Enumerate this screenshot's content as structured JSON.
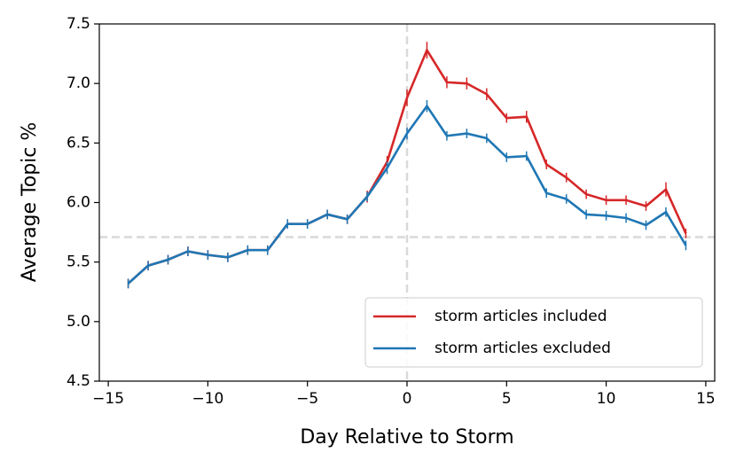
{
  "chart_data": {
    "type": "line",
    "xlabel": "Day Relative to Storm",
    "ylabel": "Average Topic %",
    "x": [
      -14,
      -13,
      -12,
      -11,
      -10,
      -9,
      -8,
      -7,
      -6,
      -5,
      -4,
      -3,
      -2,
      -1,
      0,
      1,
      2,
      3,
      4,
      5,
      6,
      7,
      8,
      9,
      10,
      11,
      12,
      13,
      14
    ],
    "series": [
      {
        "name": "storm articles included",
        "color": "#d62728",
        "values": [
          5.32,
          5.47,
          5.52,
          5.59,
          5.56,
          5.54,
          5.6,
          5.6,
          5.82,
          5.82,
          5.9,
          5.86,
          6.05,
          6.34,
          6.88,
          7.28,
          7.01,
          7.0,
          6.91,
          6.71,
          6.72,
          6.32,
          6.21,
          6.07,
          6.02,
          6.02,
          5.97,
          6.11,
          5.74
        ],
        "errors": [
          0.04,
          0.04,
          0.04,
          0.04,
          0.04,
          0.04,
          0.04,
          0.04,
          0.04,
          0.04,
          0.04,
          0.04,
          0.05,
          0.05,
          0.07,
          0.07,
          0.05,
          0.05,
          0.05,
          0.04,
          0.05,
          0.04,
          0.04,
          0.04,
          0.04,
          0.04,
          0.04,
          0.06,
          0.04
        ]
      },
      {
        "name": "storm articles excluded",
        "color": "#1f77b4",
        "values": [
          5.32,
          5.47,
          5.52,
          5.59,
          5.56,
          5.54,
          5.6,
          5.6,
          5.82,
          5.82,
          5.9,
          5.86,
          6.05,
          6.29,
          6.58,
          6.81,
          6.56,
          6.58,
          6.54,
          6.38,
          6.39,
          6.08,
          6.03,
          5.9,
          5.89,
          5.87,
          5.81,
          5.92,
          5.64
        ],
        "errors": [
          0.04,
          0.04,
          0.04,
          0.04,
          0.04,
          0.04,
          0.04,
          0.04,
          0.04,
          0.04,
          0.04,
          0.04,
          0.04,
          0.05,
          0.05,
          0.05,
          0.04,
          0.04,
          0.04,
          0.04,
          0.04,
          0.04,
          0.04,
          0.04,
          0.04,
          0.04,
          0.04,
          0.04,
          0.04
        ]
      }
    ],
    "reference_lines": {
      "x": 0,
      "y": 5.71
    },
    "xlim": [
      -15.45,
      15.45
    ],
    "ylim": [
      4.5,
      7.5
    ],
    "xticks": [
      {
        "value": -15,
        "label": "−15"
      },
      {
        "value": -10,
        "label": "−10"
      },
      {
        "value": -5,
        "label": "−5"
      },
      0,
      5,
      10,
      15
    ],
    "yticks": [
      4.5,
      {
        "value": 5,
        "label": "5.0"
      },
      5.5,
      {
        "value": 6,
        "label": "6.0"
      },
      6.5,
      {
        "value": 7,
        "label": "7.0"
      },
      7.5
    ],
    "legend": "lower right"
  }
}
